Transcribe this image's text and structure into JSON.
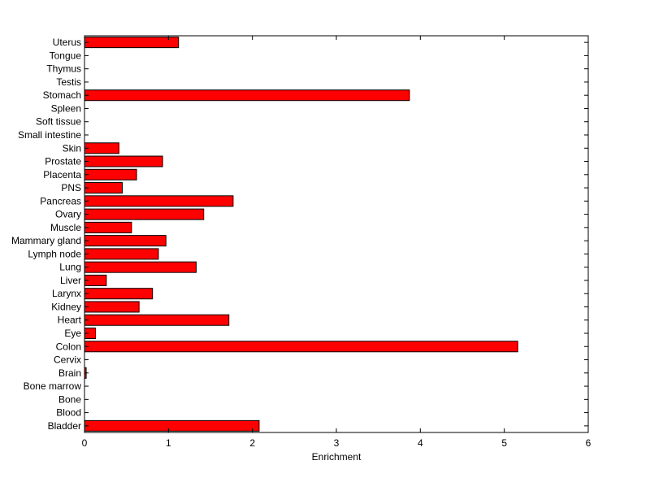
{
  "chart_data": {
    "type": "bar",
    "orientation": "horizontal",
    "categories": [
      "Bladder",
      "Blood",
      "Bone",
      "Bone marrow",
      "Brain",
      "Cervix",
      "Colon",
      "Eye",
      "Heart",
      "Kidney",
      "Larynx",
      "Liver",
      "Lung",
      "Lymph node",
      "Mammary gland",
      "Muscle",
      "Ovary",
      "Pancreas",
      "PNS",
      "Placenta",
      "Prostate",
      "Skin",
      "Small intestine",
      "Soft tissue",
      "Spleen",
      "Stomach",
      "Testis",
      "Thymus",
      "Tongue",
      "Uterus"
    ],
    "values": [
      2.08,
      0,
      0,
      0,
      0.02,
      0,
      5.16,
      0.13,
      1.72,
      0.65,
      0.81,
      0.26,
      1.33,
      0.88,
      0.97,
      0.56,
      1.42,
      1.77,
      0.45,
      0.62,
      0.93,
      0.41,
      0,
      0,
      0,
      3.87,
      0,
      0,
      0,
      1.12
    ],
    "xlabel": "Enrichment",
    "ylabel": "",
    "title": "",
    "xlim": [
      0,
      6
    ],
    "xticks": [
      0,
      1,
      2,
      3,
      4,
      5,
      6
    ],
    "bar_color": "#ff0000",
    "grid": false
  }
}
